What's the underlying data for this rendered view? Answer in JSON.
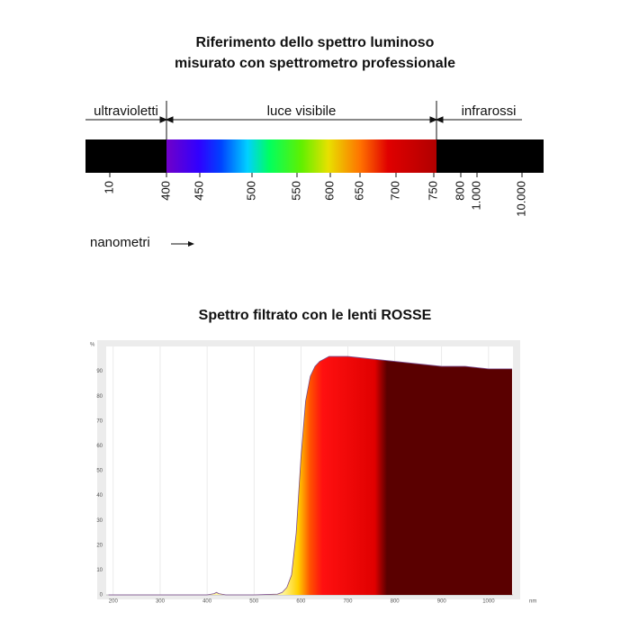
{
  "reference_spectrum": {
    "title_lines": [
      "Riferimento dello spettro luminoso",
      "misurato con spettrometro professionale"
    ],
    "regions": [
      "ultravioletti",
      "luce visibile",
      "infrarossi"
    ],
    "tick_labels": [
      "10",
      "400",
      "450",
      "500",
      "550",
      "600",
      "650",
      "700",
      "750",
      "800",
      "1.000",
      "10.000"
    ],
    "unit_label": "nanometri"
  },
  "chart_data": {
    "type": "area",
    "title": "Spettro filtrato con le lenti ROSSE",
    "y_label": "%",
    "x_label": "nm",
    "x": [
      190,
      300,
      400,
      415,
      420,
      425,
      440,
      500,
      550,
      560,
      570,
      580,
      590,
      600,
      610,
      620,
      630,
      640,
      660,
      700,
      750,
      800,
      850,
      900,
      950,
      1000,
      1050
    ],
    "values": [
      0,
      0,
      0,
      0.5,
      1,
      0.5,
      0,
      0,
      0.3,
      1,
      3,
      8,
      25,
      55,
      78,
      88,
      92,
      94,
      96,
      96,
      95,
      94,
      93,
      92,
      92,
      91,
      91
    ],
    "xlim": [
      185,
      1052
    ],
    "ylim": [
      0,
      100
    ],
    "xticks": [
      200,
      300,
      400,
      500,
      600,
      700,
      800,
      900,
      1000
    ],
    "yticks": [
      0,
      10,
      20,
      30,
      40,
      50,
      60,
      70,
      80,
      90
    ],
    "grid": true
  }
}
